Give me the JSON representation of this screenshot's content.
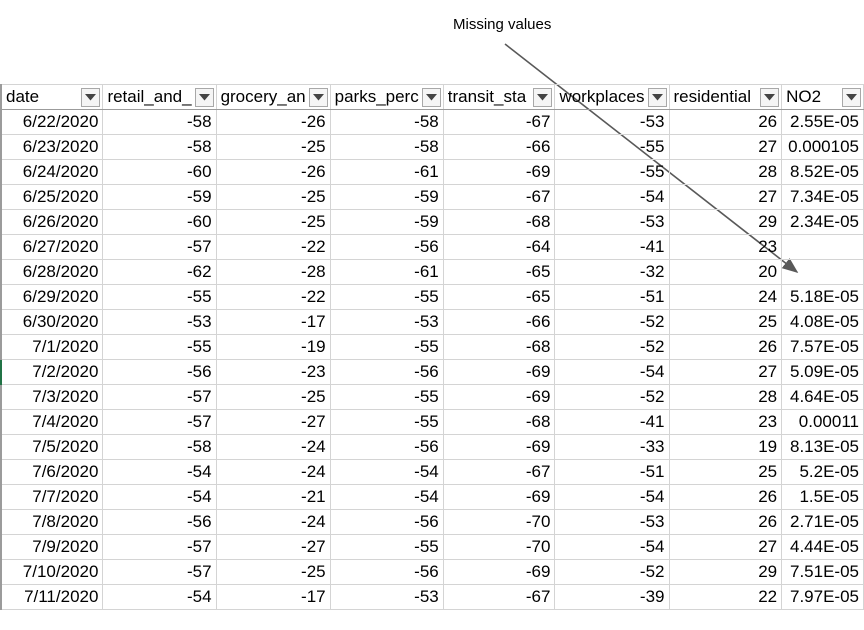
{
  "annotation": {
    "text": "Missing values"
  },
  "icons": {
    "filter": "filter-dropdown-arrow-icon"
  },
  "columns": [
    "date",
    "retail_and_",
    "grocery_an",
    "parks_perc",
    "transit_sta",
    "workplaces",
    "residential",
    "NO2"
  ],
  "rows": [
    [
      "6/22/2020",
      "-58",
      "-26",
      "-58",
      "-67",
      "-53",
      "26",
      "2.55E-05"
    ],
    [
      "6/23/2020",
      "-58",
      "-25",
      "-58",
      "-66",
      "-55",
      "27",
      "0.000105"
    ],
    [
      "6/24/2020",
      "-60",
      "-26",
      "-61",
      "-69",
      "-55",
      "28",
      "8.52E-05"
    ],
    [
      "6/25/2020",
      "-59",
      "-25",
      "-59",
      "-67",
      "-54",
      "27",
      "7.34E-05"
    ],
    [
      "6/26/2020",
      "-60",
      "-25",
      "-59",
      "-68",
      "-53",
      "29",
      "2.34E-05"
    ],
    [
      "6/27/2020",
      "-57",
      "-22",
      "-56",
      "-64",
      "-41",
      "23",
      ""
    ],
    [
      "6/28/2020",
      "-62",
      "-28",
      "-61",
      "-65",
      "-32",
      "20",
      ""
    ],
    [
      "6/29/2020",
      "-55",
      "-22",
      "-55",
      "-65",
      "-51",
      "24",
      "5.18E-05"
    ],
    [
      "6/30/2020",
      "-53",
      "-17",
      "-53",
      "-66",
      "-52",
      "25",
      "4.08E-05"
    ],
    [
      "7/1/2020",
      "-55",
      "-19",
      "-55",
      "-68",
      "-52",
      "26",
      "7.57E-05"
    ],
    [
      "7/2/2020",
      "-56",
      "-23",
      "-56",
      "-69",
      "-54",
      "27",
      "5.09E-05"
    ],
    [
      "7/3/2020",
      "-57",
      "-25",
      "-55",
      "-69",
      "-52",
      "28",
      "4.64E-05"
    ],
    [
      "7/4/2020",
      "-57",
      "-27",
      "-55",
      "-68",
      "-41",
      "23",
      "0.00011"
    ],
    [
      "7/5/2020",
      "-58",
      "-24",
      "-56",
      "-69",
      "-33",
      "19",
      "8.13E-05"
    ],
    [
      "7/6/2020",
      "-54",
      "-24",
      "-54",
      "-67",
      "-51",
      "25",
      "5.2E-05"
    ],
    [
      "7/7/2020",
      "-54",
      "-21",
      "-54",
      "-69",
      "-54",
      "26",
      "1.5E-05"
    ],
    [
      "7/8/2020",
      "-56",
      "-24",
      "-56",
      "-70",
      "-53",
      "26",
      "2.71E-05"
    ],
    [
      "7/9/2020",
      "-57",
      "-27",
      "-55",
      "-70",
      "-54",
      "27",
      "4.44E-05"
    ],
    [
      "7/10/2020",
      "-57",
      "-25",
      "-56",
      "-69",
      "-52",
      "29",
      "7.51E-05"
    ],
    [
      "7/11/2020",
      "-54",
      "-17",
      "-53",
      "-67",
      "-39",
      "22",
      "7.97E-05"
    ]
  ]
}
